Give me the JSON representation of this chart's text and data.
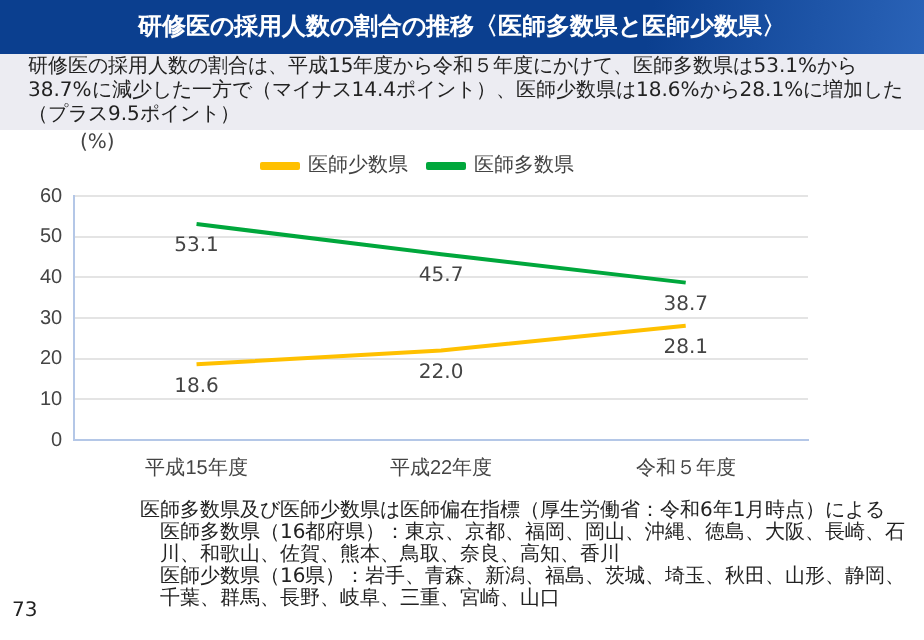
{
  "chart_data": {
    "type": "line",
    "title": "研修医の採用人数の割合の推移〈医師多数県と医師少数県〉",
    "subtitle": "研修医の採用人数の割合は、平成15年度から令和５年度にかけて、医師多数県は53.1%から38.7%に減少した一方で（マイナス14.4ポイント）、医師少数県は18.6%から28.1%に増加した（プラス9.5ポイント）",
    "ylabel": "(%)",
    "categories": [
      "平成15年度",
      "平成22年度",
      "令和５年度"
    ],
    "series": [
      {
        "name": "医師少数県",
        "color": "#ffc000",
        "values": [
          18.6,
          22.0,
          28.1
        ],
        "value_labels": [
          "18.6",
          "22.0",
          "28.1"
        ]
      },
      {
        "name": "医師多数県",
        "color": "#00a73c",
        "values": [
          53.1,
          45.7,
          38.7
        ],
        "value_labels": [
          "53.1",
          "45.7",
          "38.7"
        ]
      }
    ],
    "ylim": [
      0,
      60
    ],
    "yticks": [
      0,
      10,
      20,
      30,
      40,
      50,
      60
    ],
    "grid": "y",
    "legend": "top",
    "marker": "none",
    "annotations": [
      "医師多数県及び医師少数県は医師偏在指標（厚生労働省：令和6年1月時点）による",
      "医師多数県（16都府県）：東京、京都、福岡、岡山、沖縄、徳島、大阪、長崎、石川、和歌山、佐賀、熊本、鳥取、奈良、高知、香川",
      "医師少数県（16県）：岩手、青森、新潟、福島、茨城、埼玉、秋田、山形、静岡、千葉、群馬、長野、岐阜、三重、宮崎、山口",
      "73"
    ]
  }
}
